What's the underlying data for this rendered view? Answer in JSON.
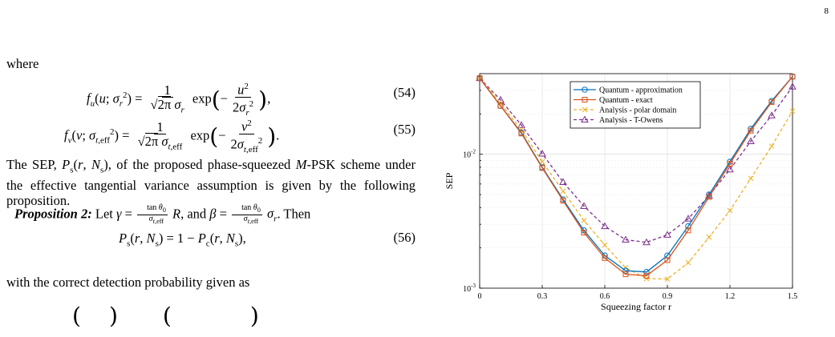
{
  "page": {
    "number": "8"
  },
  "text": {
    "where": "where",
    "eq54_num": "(54)",
    "eq55_num": "(55)",
    "sep_paragraph_1": "The SEP, ",
    "sep_paragraph_2": ", of the proposed phase-squeezed ",
    "sep_paragraph_3": "-PSK scheme under the effective tangential variance assumption is given by the following proposition.",
    "prop_label": "Proposition 2:",
    "prop_text_1": " Let ",
    "prop_text_2": ", and ",
    "prop_text_3": ". Then",
    "eq56_num": "(56)",
    "correct_detection": "with the correct detection probability given as"
  },
  "chart_data": {
    "type": "line",
    "xlabel": "Squeezing factor r",
    "ylabel": "SEP",
    "yscale": "log",
    "xlim": [
      0,
      1.5
    ],
    "ylim": [
      0.001,
      0.04
    ],
    "xticks": [
      0,
      0.3,
      0.6,
      0.9,
      1.2,
      1.5
    ],
    "xtick_labels": [
      "0",
      "0.3",
      "0.6",
      "0.9",
      "1.2",
      "1.5"
    ],
    "yticks": [
      0.001,
      0.01
    ],
    "grid": true,
    "legend_position": "top-right",
    "x": [
      0,
      0.1,
      0.2,
      0.3,
      0.4,
      0.5,
      0.6,
      0.7,
      0.8,
      0.9,
      1.0,
      1.1,
      1.2,
      1.3,
      1.4,
      1.5
    ],
    "series": [
      {
        "name": "Quantum - approximation",
        "color": "#0072BD",
        "marker": "circle",
        "dash": "solid",
        "values": [
          0.037,
          0.023,
          0.0145,
          0.008,
          0.0046,
          0.0027,
          0.00175,
          0.00135,
          0.00132,
          0.00175,
          0.0029,
          0.005,
          0.0088,
          0.0155,
          0.025,
          0.038
        ]
      },
      {
        "name": "Quantum - exact",
        "color": "#D95319",
        "marker": "square",
        "dash": "solid",
        "values": [
          0.037,
          0.023,
          0.0143,
          0.0079,
          0.0045,
          0.0026,
          0.00168,
          0.00127,
          0.00124,
          0.00162,
          0.0027,
          0.0048,
          0.0085,
          0.015,
          0.0245,
          0.038
        ]
      },
      {
        "name": "Analysis - polar domain",
        "color": "#EDB120",
        "marker": "x",
        "dash": "dashed",
        "values": [
          0.037,
          0.024,
          0.0152,
          0.0088,
          0.0053,
          0.0032,
          0.0021,
          0.00142,
          0.00118,
          0.00117,
          0.00155,
          0.0024,
          0.0038,
          0.0066,
          0.0115,
          0.021
        ]
      },
      {
        "name": "Analysis - T-Owens",
        "color": "#7E2F8E",
        "marker": "triangle",
        "dash": "dashed",
        "values": [
          0.037,
          0.0255,
          0.0165,
          0.0101,
          0.0062,
          0.0041,
          0.0029,
          0.0023,
          0.0022,
          0.0025,
          0.0033,
          0.0049,
          0.0077,
          0.0125,
          0.0195,
          0.032
        ]
      }
    ]
  }
}
